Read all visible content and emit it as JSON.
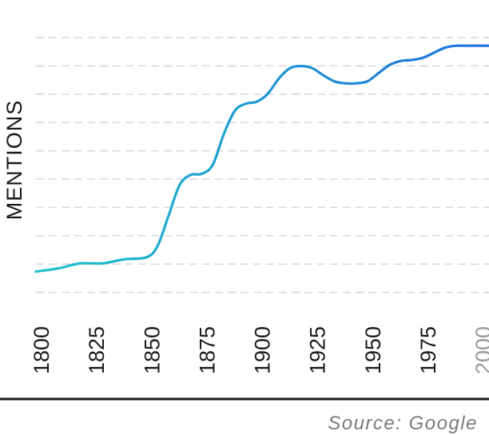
{
  "chart_data": {
    "type": "line",
    "title": "",
    "xlabel": "",
    "ylabel": "MENTIONS",
    "x": [
      1800,
      1810,
      1820,
      1830,
      1840,
      1850,
      1855,
      1860,
      1865,
      1870,
      1875,
      1880,
      1885,
      1890,
      1895,
      1900,
      1905,
      1910,
      1915,
      1920,
      1925,
      1930,
      1935,
      1940,
      1945,
      1950,
      1955,
      1960,
      1965,
      1970,
      1975,
      1980,
      1985,
      1990,
      1995,
      2000,
      2005
    ],
    "values": [
      2.0,
      2.3,
      2.8,
      2.8,
      3.2,
      3.4,
      4.5,
      7.5,
      10.5,
      11.5,
      11.6,
      12.5,
      15.5,
      17.8,
      18.5,
      18.7,
      19.5,
      21.0,
      22.0,
      22.2,
      22.0,
      21.3,
      20.7,
      20.5,
      20.5,
      20.7,
      21.5,
      22.3,
      22.7,
      22.8,
      23.0,
      23.5,
      24.0,
      24.2,
      24.2,
      24.2,
      24.2
    ],
    "ylim": [
      0,
      25
    ],
    "xlim": [
      1800,
      2005
    ],
    "x_ticks": [
      "1800",
      "1825",
      "1850",
      "1875",
      "1900",
      "1925",
      "1950",
      "1975",
      "2000"
    ],
    "muted_ticks": [
      "2000"
    ],
    "grid": true,
    "gridline_count": 10,
    "line_color_start": "#1fc3c7",
    "line_color_end": "#1f6fe0"
  },
  "source_text": "Source: Google"
}
